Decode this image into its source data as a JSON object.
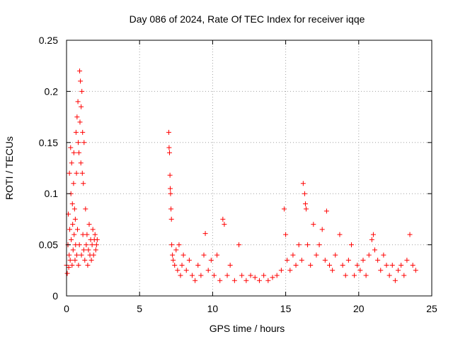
{
  "chart_data": {
    "type": "scatter",
    "title": "Day 086 of 2024, Rate Of TEC Index for receiver iqqe",
    "xlabel": "GPS time / hours",
    "ylabel": "ROTI / TECUs",
    "xlim": [
      0,
      25
    ],
    "ylim": [
      0,
      0.25
    ],
    "x_ticks": [
      "0",
      "5",
      "10",
      "15",
      "20",
      "25"
    ],
    "y_ticks": [
      "0",
      "0.05",
      "0.1",
      "0.15",
      "0.2",
      "0.25"
    ],
    "grid": true,
    "marker": "plus",
    "color": "#ff0000",
    "series": [
      {
        "points": [
          [
            0.0,
            0.03
          ],
          [
            0.05,
            0.022
          ],
          [
            0.1,
            0.05
          ],
          [
            0.12,
            0.08
          ],
          [
            0.15,
            0.028
          ],
          [
            0.18,
            0.04
          ],
          [
            0.2,
            0.12
          ],
          [
            0.22,
            0.065
          ],
          [
            0.25,
            0.035
          ],
          [
            0.28,
            0.145
          ],
          [
            0.3,
            0.1
          ],
          [
            0.32,
            0.055
          ],
          [
            0.35,
            0.13
          ],
          [
            0.38,
            0.03
          ],
          [
            0.4,
            0.09
          ],
          [
            0.42,
            0.07
          ],
          [
            0.45,
            0.045
          ],
          [
            0.48,
            0.11
          ],
          [
            0.5,
            0.14
          ],
          [
            0.52,
            0.06
          ],
          [
            0.55,
            0.085
          ],
          [
            0.58,
            0.035
          ],
          [
            0.6,
            0.075
          ],
          [
            0.62,
            0.05
          ],
          [
            0.65,
            0.16
          ],
          [
            0.68,
            0.12
          ],
          [
            0.7,
            0.04
          ],
          [
            0.72,
            0.175
          ],
          [
            0.75,
            0.065
          ],
          [
            0.78,
            0.19
          ],
          [
            0.8,
            0.15
          ],
          [
            0.82,
            0.03
          ],
          [
            0.85,
            0.14
          ],
          [
            0.88,
            0.05
          ],
          [
            0.9,
            0.22
          ],
          [
            0.92,
            0.17
          ],
          [
            0.95,
            0.21
          ],
          [
            0.98,
            0.13
          ],
          [
            1.0,
            0.185
          ],
          [
            1.02,
            0.04
          ],
          [
            1.05,
            0.2
          ],
          [
            1.08,
            0.12
          ],
          [
            1.1,
            0.16
          ],
          [
            1.12,
            0.06
          ],
          [
            1.15,
            0.11
          ],
          [
            1.18,
            0.045
          ],
          [
            1.2,
            0.15
          ],
          [
            1.25,
            0.035
          ],
          [
            1.3,
            0.085
          ],
          [
            1.35,
            0.05
          ],
          [
            1.4,
            0.06
          ],
          [
            1.45,
            0.03
          ],
          [
            1.5,
            0.045
          ],
          [
            1.55,
            0.07
          ],
          [
            1.6,
            0.04
          ],
          [
            1.65,
            0.055
          ],
          [
            1.7,
            0.035
          ],
          [
            1.75,
            0.05
          ],
          [
            1.8,
            0.065
          ],
          [
            1.85,
            0.04
          ],
          [
            1.9,
            0.055
          ],
          [
            1.95,
            0.06
          ],
          [
            2.0,
            0.045
          ],
          [
            2.05,
            0.05
          ],
          [
            2.1,
            0.055
          ],
          [
            7.0,
            0.16
          ],
          [
            7.02,
            0.145
          ],
          [
            7.05,
            0.14
          ],
          [
            7.08,
            0.118
          ],
          [
            7.1,
            0.105
          ],
          [
            7.12,
            0.1
          ],
          [
            7.15,
            0.085
          ],
          [
            7.18,
            0.075
          ],
          [
            7.2,
            0.05
          ],
          [
            7.25,
            0.04
          ],
          [
            7.3,
            0.035
          ],
          [
            7.4,
            0.03
          ],
          [
            7.5,
            0.045
          ],
          [
            7.6,
            0.025
          ],
          [
            7.7,
            0.05
          ],
          [
            7.8,
            0.02
          ],
          [
            7.9,
            0.03
          ],
          [
            8.0,
            0.04
          ],
          [
            8.2,
            0.025
          ],
          [
            8.4,
            0.035
          ],
          [
            8.6,
            0.02
          ],
          [
            8.8,
            0.015
          ],
          [
            9.0,
            0.03
          ],
          [
            9.2,
            0.02
          ],
          [
            9.4,
            0.04
          ],
          [
            9.5,
            0.061
          ],
          [
            9.7,
            0.025
          ],
          [
            9.9,
            0.035
          ],
          [
            10.1,
            0.02
          ],
          [
            10.3,
            0.04
          ],
          [
            10.5,
            0.015
          ],
          [
            10.7,
            0.075
          ],
          [
            10.8,
            0.07
          ],
          [
            11.0,
            0.02
          ],
          [
            11.2,
            0.03
          ],
          [
            11.5,
            0.015
          ],
          [
            11.8,
            0.05
          ],
          [
            12.0,
            0.02
          ],
          [
            12.3,
            0.015
          ],
          [
            12.6,
            0.02
          ],
          [
            12.9,
            0.018
          ],
          [
            13.2,
            0.015
          ],
          [
            13.5,
            0.02
          ],
          [
            13.8,
            0.015
          ],
          [
            14.1,
            0.018
          ],
          [
            14.4,
            0.02
          ],
          [
            14.7,
            0.025
          ],
          [
            14.9,
            0.085
          ],
          [
            15.0,
            0.06
          ],
          [
            15.1,
            0.035
          ],
          [
            15.3,
            0.025
          ],
          [
            15.5,
            0.04
          ],
          [
            15.7,
            0.03
          ],
          [
            15.9,
            0.05
          ],
          [
            16.1,
            0.035
          ],
          [
            16.2,
            0.11
          ],
          [
            16.3,
            0.1
          ],
          [
            16.35,
            0.09
          ],
          [
            16.4,
            0.085
          ],
          [
            16.5,
            0.05
          ],
          [
            16.7,
            0.03
          ],
          [
            16.9,
            0.07
          ],
          [
            17.1,
            0.04
          ],
          [
            17.3,
            0.05
          ],
          [
            17.5,
            0.065
          ],
          [
            17.7,
            0.035
          ],
          [
            17.8,
            0.083
          ],
          [
            18.0,
            0.03
          ],
          [
            18.2,
            0.025
          ],
          [
            18.4,
            0.04
          ],
          [
            18.7,
            0.06
          ],
          [
            18.9,
            0.03
          ],
          [
            19.1,
            0.02
          ],
          [
            19.3,
            0.035
          ],
          [
            19.5,
            0.05
          ],
          [
            19.7,
            0.02
          ],
          [
            19.9,
            0.03
          ],
          [
            20.1,
            0.025
          ],
          [
            20.3,
            0.035
          ],
          [
            20.5,
            0.02
          ],
          [
            20.7,
            0.04
          ],
          [
            20.9,
            0.055
          ],
          [
            21.0,
            0.06
          ],
          [
            21.1,
            0.045
          ],
          [
            21.3,
            0.035
          ],
          [
            21.5,
            0.025
          ],
          [
            21.7,
            0.04
          ],
          [
            21.9,
            0.03
          ],
          [
            22.1,
            0.02
          ],
          [
            22.3,
            0.03
          ],
          [
            22.5,
            0.015
          ],
          [
            22.7,
            0.025
          ],
          [
            22.9,
            0.03
          ],
          [
            23.1,
            0.02
          ],
          [
            23.3,
            0.035
          ],
          [
            23.5,
            0.06
          ],
          [
            23.7,
            0.03
          ],
          [
            23.9,
            0.025
          ]
        ]
      }
    ]
  }
}
